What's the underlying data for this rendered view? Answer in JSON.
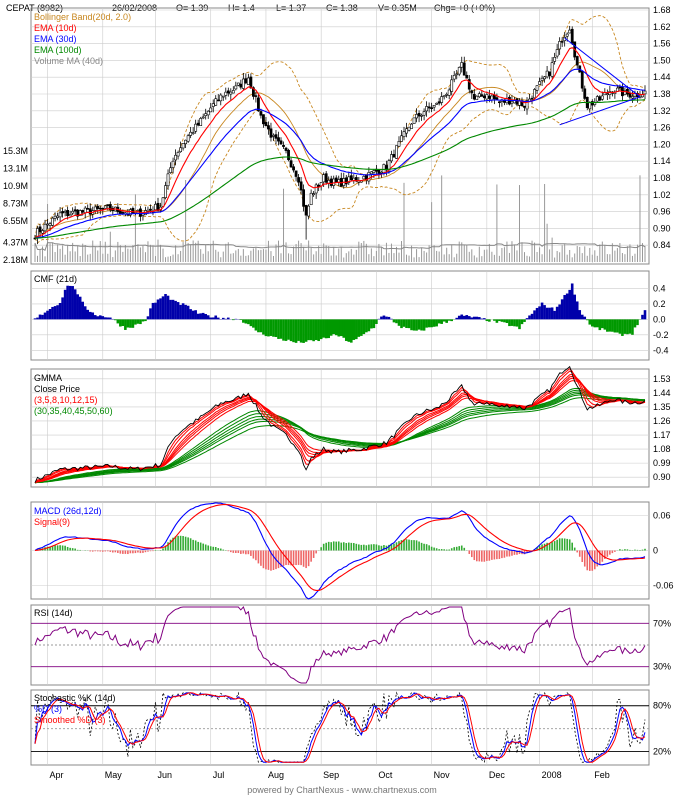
{
  "header": {
    "symbol": "CEPAT (8982)",
    "date": "26/02/2008",
    "open": "O= 1.39",
    "high": "H= 1.4",
    "low": "L= 1.37",
    "close": "C= 1.38",
    "volume": "V= 0.35M",
    "change": "Chg= +0 (+0%)"
  },
  "footer": "powered by ChartNexus - www.chartnexus.com",
  "colors": {
    "bollinger": "#c8871f",
    "ema10": "#ff0000",
    "ema30": "#0000ff",
    "ema100": "#008800",
    "volume_ma": "#888888",
    "cmf_pos": "#0000aa",
    "cmf_neg": "#009900",
    "rsi": "#800080",
    "grid": "#cccccc"
  },
  "chart_data": [
    {
      "type": "candlestick",
      "panel": "price",
      "legend": [
        "Bollinger Band(20d, 2.0)",
        "EMA (10d)",
        "EMA (30d)",
        "EMA (100d)",
        "Volume MA (40d)"
      ],
      "y_ticks": [
        "1.68",
        "1.62",
        "1.56",
        "1.50",
        "1.44",
        "1.38",
        "1.32",
        "1.26",
        "1.20",
        "1.14",
        "1.08",
        "1.02",
        "0.96",
        "0.90",
        "0.84"
      ],
      "volume_ticks": [
        "15.3M",
        "13.1M",
        "10.9M",
        "8.73M",
        "6.55M",
        "4.37M",
        "2.18M"
      ],
      "ylim": [
        0.78,
        1.68
      ],
      "x_ticks": [
        "Apr",
        "May",
        "Jun",
        "Jul",
        "Aug",
        "Sep",
        "Oct",
        "Nov",
        "Dec",
        "2008",
        "Feb"
      ],
      "close_anchors": [
        [
          0,
          0.88
        ],
        [
          10,
          0.95
        ],
        [
          20,
          0.96
        ],
        [
          30,
          0.97
        ],
        [
          40,
          0.95
        ],
        [
          50,
          0.98
        ],
        [
          55,
          1.15
        ],
        [
          60,
          1.22
        ],
        [
          65,
          1.27
        ],
        [
          70,
          1.33
        ],
        [
          75,
          1.38
        ],
        [
          80,
          1.4
        ],
        [
          85,
          1.44
        ],
        [
          90,
          1.3
        ],
        [
          95,
          1.22
        ],
        [
          100,
          1.17
        ],
        [
          105,
          1.08
        ],
        [
          108,
          0.94
        ],
        [
          110,
          1.02
        ],
        [
          115,
          1.08
        ],
        [
          120,
          1.06
        ],
        [
          130,
          1.08
        ],
        [
          135,
          1.1
        ],
        [
          140,
          1.12
        ],
        [
          145,
          1.2
        ],
        [
          150,
          1.28
        ],
        [
          155,
          1.32
        ],
        [
          160,
          1.34
        ],
        [
          165,
          1.4
        ],
        [
          170,
          1.48
        ],
        [
          175,
          1.36
        ],
        [
          180,
          1.38
        ],
        [
          185,
          1.35
        ],
        [
          190,
          1.36
        ],
        [
          195,
          1.34
        ],
        [
          200,
          1.4
        ],
        [
          205,
          1.46
        ],
        [
          210,
          1.58
        ],
        [
          213,
          1.62
        ],
        [
          216,
          1.48
        ],
        [
          220,
          1.34
        ],
        [
          225,
          1.36
        ],
        [
          230,
          1.4
        ],
        [
          235,
          1.38
        ],
        [
          240,
          1.38
        ]
      ],
      "trend_lines": [
        [
          211,
          1.58,
          241,
          1.37
        ],
        [
          209,
          1.27,
          241,
          1.37
        ]
      ]
    },
    {
      "type": "area",
      "panel": "cmf",
      "legend": [
        "CMF (21d)"
      ],
      "y_ticks": [
        "0.4",
        "0.2",
        "0.0",
        "-0.2",
        "-0.4"
      ],
      "ylim": [
        -0.5,
        0.6
      ],
      "anchors": [
        [
          0,
          0.0
        ],
        [
          5,
          0.12
        ],
        [
          10,
          0.22
        ],
        [
          13,
          0.45
        ],
        [
          16,
          0.4
        ],
        [
          20,
          0.15
        ],
        [
          25,
          0.05
        ],
        [
          30,
          0.03
        ],
        [
          33,
          -0.05
        ],
        [
          36,
          -0.12
        ],
        [
          40,
          -0.08
        ],
        [
          44,
          -0.02
        ],
        [
          47,
          0.2
        ],
        [
          52,
          0.32
        ],
        [
          56,
          0.22
        ],
        [
          60,
          0.18
        ],
        [
          65,
          0.08
        ],
        [
          70,
          0.04
        ],
        [
          75,
          0.02
        ],
        [
          82,
          0.0
        ],
        [
          86,
          -0.1
        ],
        [
          90,
          -0.18
        ],
        [
          96,
          -0.24
        ],
        [
          104,
          -0.3
        ],
        [
          112,
          -0.28
        ],
        [
          120,
          -0.2
        ],
        [
          126,
          -0.3
        ],
        [
          130,
          -0.22
        ],
        [
          135,
          -0.1
        ],
        [
          138,
          0.05
        ],
        [
          141,
          0.02
        ],
        [
          146,
          -0.1
        ],
        [
          152,
          -0.16
        ],
        [
          158,
          -0.1
        ],
        [
          165,
          -0.02
        ],
        [
          170,
          0.05
        ],
        [
          176,
          0.02
        ],
        [
          182,
          -0.02
        ],
        [
          188,
          -0.06
        ],
        [
          193,
          -0.12
        ],
        [
          197,
          0.05
        ],
        [
          202,
          0.2
        ],
        [
          207,
          0.12
        ],
        [
          211,
          0.3
        ],
        [
          214,
          0.45
        ],
        [
          217,
          0.12
        ],
        [
          222,
          -0.1
        ],
        [
          228,
          -0.15
        ],
        [
          233,
          -0.2
        ],
        [
          238,
          -0.18
        ],
        [
          241,
          0.0
        ],
        [
          243,
          0.1
        ]
      ]
    },
    {
      "type": "line",
      "panel": "gmma",
      "legend": [
        "GMMA",
        "Close Price",
        "(3,5,8,10,12,15)",
        "(30,35,40,45,50,60)"
      ],
      "y_ticks": [
        "1.53",
        "1.44",
        "1.35",
        "1.26",
        "1.17",
        "1.08",
        "0.99",
        "0.90"
      ],
      "ylim": [
        0.85,
        1.58
      ],
      "short_periods": [
        3,
        5,
        8,
        10,
        12,
        15
      ],
      "long_periods": [
        30,
        35,
        40,
        45,
        50,
        60
      ]
    },
    {
      "type": "line",
      "panel": "macd",
      "legend": [
        "MACD (26d,12d)",
        "Signal(9)"
      ],
      "y_ticks": [
        "0.06",
        "0",
        "-0.06"
      ],
      "ylim": [
        -0.08,
        0.08
      ]
    },
    {
      "type": "line",
      "panel": "rsi",
      "legend": [
        "RSI (14d)"
      ],
      "y_ticks": [
        "70%",
        "30%"
      ],
      "ylim": [
        15,
        85
      ],
      "levels": [
        70,
        50,
        30
      ]
    },
    {
      "type": "line",
      "panel": "stochastic",
      "legend": [
        "Stochastic %K (14d)",
        "%D (3)",
        "Smoothed %D (3)"
      ],
      "y_ticks": [
        "80%",
        "20%"
      ],
      "ylim": [
        5,
        98
      ],
      "levels": [
        80,
        50,
        20
      ]
    }
  ]
}
